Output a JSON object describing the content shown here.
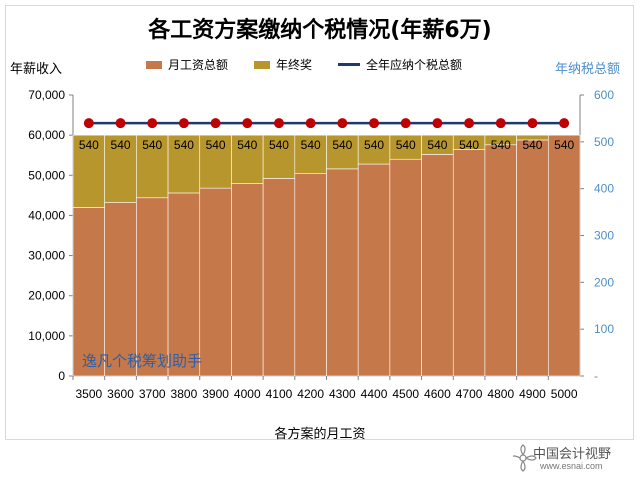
{
  "chart_data": {
    "type": "bar",
    "title": "各工资方案缴纳个税情况(年薪6万)",
    "xlabel": "各方案的月工资",
    "ylabel": "年薪收入",
    "y2label": "年纳税总额",
    "categories": [
      "3500",
      "3600",
      "3700",
      "3800",
      "3900",
      "4000",
      "4100",
      "4200",
      "4300",
      "4400",
      "4500",
      "4600",
      "4700",
      "4800",
      "4900",
      "5000"
    ],
    "stacked": true,
    "series": [
      {
        "name": "月工资总额",
        "axis": "left",
        "color": "#c5784a",
        "values": [
          42000,
          43200,
          44400,
          45600,
          46800,
          48000,
          49200,
          50400,
          51600,
          52800,
          54000,
          55200,
          56400,
          57600,
          58800,
          60000
        ]
      },
      {
        "name": "年终奖",
        "axis": "left",
        "color": "#b8962e",
        "values": [
          18000,
          16800,
          15600,
          14400,
          13200,
          12000,
          10800,
          9600,
          8400,
          7200,
          6000,
          4800,
          3600,
          2400,
          1200,
          0
        ]
      },
      {
        "name": "全年应纳个税总额",
        "axis": "right",
        "type": "line",
        "color": "#1f3a6e",
        "marker_color": "#c00000",
        "values": [
          540,
          540,
          540,
          540,
          540,
          540,
          540,
          540,
          540,
          540,
          540,
          540,
          540,
          540,
          540,
          540
        ]
      }
    ],
    "data_labels": [
      "540",
      "540",
      "540",
      "540",
      "540",
      "540",
      "540",
      "540",
      "540",
      "540",
      "540",
      "540",
      "540",
      "540",
      "540",
      "540"
    ],
    "ylim": [
      0,
      70000
    ],
    "yticks": [
      "0",
      "10,000",
      "20,000",
      "30,000",
      "40,000",
      "50,000",
      "60,000",
      "70,000"
    ],
    "y2lim": [
      0,
      600
    ],
    "y2ticks": [
      "-",
      "100",
      "200",
      "300",
      "400",
      "500",
      "600"
    ],
    "legend": "top"
  },
  "annotation": "逸凡个税筹划助手",
  "footer": {
    "name": "中国会计视野",
    "url": "www.esnai.com"
  }
}
